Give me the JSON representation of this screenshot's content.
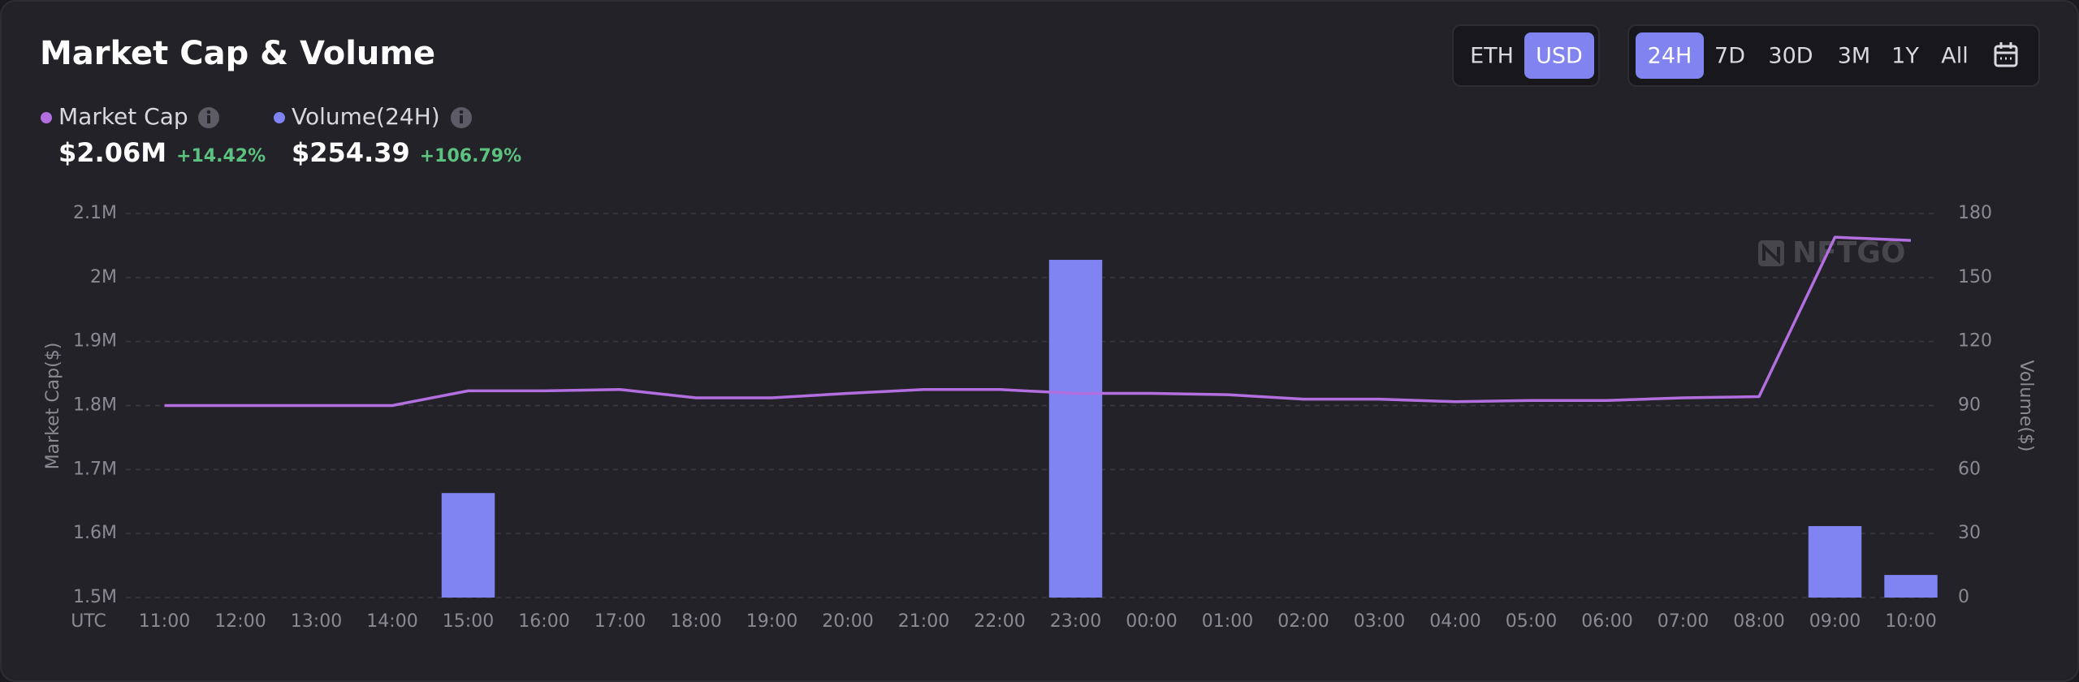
{
  "chart_data": {
    "type": "bar-line",
    "title": "Market Cap & Volume",
    "currency_toggle": {
      "options": [
        "ETH",
        "USD"
      ],
      "active": 1
    },
    "range_toggle": {
      "options": [
        "24H",
        "7D",
        "30D",
        "3M",
        "1Y",
        "All"
      ],
      "active": 0
    },
    "watermark": "NFTGO",
    "x_axis_label": "UTC",
    "y_axis_label": "Market Cap($)",
    "y2_axis_label": "Volume($)",
    "categories": [
      "11:00",
      "12:00",
      "13:00",
      "14:00",
      "15:00",
      "16:00",
      "17:00",
      "18:00",
      "19:00",
      "20:00",
      "21:00",
      "22:00",
      "23:00",
      "00:00",
      "01:00",
      "02:00",
      "03:00",
      "04:00",
      "05:00",
      "06:00",
      "07:00",
      "08:00",
      "09:00",
      "10:00"
    ],
    "series": [
      {
        "name": "Market Cap",
        "type": "line",
        "color": "#b36ee0",
        "summary_value": "$2.06M",
        "change": "+14.42%",
        "values": [
          1800000,
          1800000,
          1800000,
          1800000,
          1823000,
          1823000,
          1825000,
          1812000,
          1812000,
          1819000,
          1825000,
          1825000,
          1819000,
          1819000,
          1817000,
          1810000,
          1810000,
          1806000,
          1808000,
          1808000,
          1812000,
          1814000,
          2063000,
          2058000
        ]
      },
      {
        "name": "Volume(24H)",
        "type": "bar",
        "axis": "y2",
        "color": "#7f84f2",
        "summary_value": "$254.39",
        "change": "+106.79%",
        "values": [
          0,
          0,
          0,
          0,
          49,
          0,
          0,
          0,
          0,
          0,
          0,
          0,
          158.3,
          0,
          0,
          0,
          0,
          0,
          0,
          0,
          0,
          0,
          33.5,
          10.6
        ]
      }
    ],
    "ylim": [
      1500000,
      2100000
    ],
    "yticks": [
      {
        "value": 1500000,
        "label": "1.5M"
      },
      {
        "value": 1600000,
        "label": "1.6M"
      },
      {
        "value": 1700000,
        "label": "1.7M"
      },
      {
        "value": 1800000,
        "label": "1.8M"
      },
      {
        "value": 1900000,
        "label": "1.9M"
      },
      {
        "value": 2000000,
        "label": "2M"
      },
      {
        "value": 2100000,
        "label": "2.1M"
      }
    ],
    "y2lim": [
      0,
      180
    ],
    "y2ticks": [
      0,
      30,
      60,
      90,
      120,
      150,
      180
    ],
    "grid": true,
    "change_color": "#5cc27f"
  }
}
